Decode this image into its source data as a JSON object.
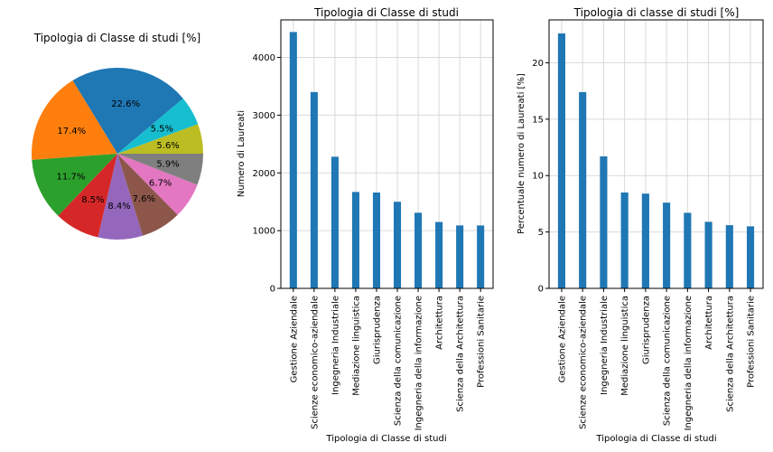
{
  "chart_data": [
    {
      "type": "pie",
      "title": "Tipologia di Classe di studi [%]",
      "slices": [
        {
          "label": "22.6%",
          "value": 22.6,
          "color": "#1f77b4"
        },
        {
          "label": "17.4%",
          "value": 17.4,
          "color": "#ff7f0e"
        },
        {
          "label": "11.7%",
          "value": 11.7,
          "color": "#2ca02c"
        },
        {
          "label": "8.5%",
          "value": 8.5,
          "color": "#d62728"
        },
        {
          "label": "8.4%",
          "value": 8.4,
          "color": "#9467bd"
        },
        {
          "label": "7.6%",
          "value": 7.6,
          "color": "#8c564b"
        },
        {
          "label": "6.7%",
          "value": 6.7,
          "color": "#e377c2"
        },
        {
          "label": "5.9%",
          "value": 5.9,
          "color": "#7f7f7f"
        },
        {
          "label": "5.6%",
          "value": 5.6,
          "color": "#bcbd22"
        },
        {
          "label": "5.5%",
          "value": 5.5,
          "color": "#17becf"
        }
      ],
      "start_angle_deg": 40
    },
    {
      "type": "bar",
      "title": "Tipologia di Classe di studi",
      "xlabel": "Tipologia di Classe di studi",
      "ylabel": "Numero di Laureati",
      "categories": [
        "Gestione Aziendale",
        "Scienze economico-aziendale",
        "Ingegneria Industriale",
        "Mediazione linguistica",
        "Giurisprudenza",
        "Scienza della comunicazione",
        "Ingegneria della informazione",
        "Architettura",
        "Scienza della Architettura",
        "Professioni Sanitarie"
      ],
      "values": [
        4440,
        3400,
        2280,
        1670,
        1660,
        1500,
        1310,
        1150,
        1090,
        1090
      ],
      "ylim": [
        0,
        4650
      ],
      "yticks": [
        0,
        1000,
        2000,
        3000,
        4000
      ],
      "grid": true,
      "color": "#1f77b4"
    },
    {
      "type": "bar",
      "title": "Tipologia di classe di studi [%]",
      "xlabel": "Tipologia di Classe di studi",
      "ylabel": "Percentuale numero di Laureati [%]",
      "categories": [
        "Gestione Aziendale",
        "Scienze economico-aziendale",
        "Ingegneria Industriale",
        "Mediazione linguistica",
        "Giurisprudenza",
        "Scienza della comunicazione",
        "Ingegneria della informazione",
        "Architettura",
        "Scienza della Architettura",
        "Professioni Sanitarie"
      ],
      "values": [
        22.6,
        17.4,
        11.7,
        8.5,
        8.4,
        7.6,
        6.7,
        5.9,
        5.6,
        5.5
      ],
      "ylim": [
        0,
        23.8
      ],
      "yticks": [
        0,
        5,
        10,
        15,
        20
      ],
      "grid": true,
      "color": "#1f77b4"
    }
  ]
}
